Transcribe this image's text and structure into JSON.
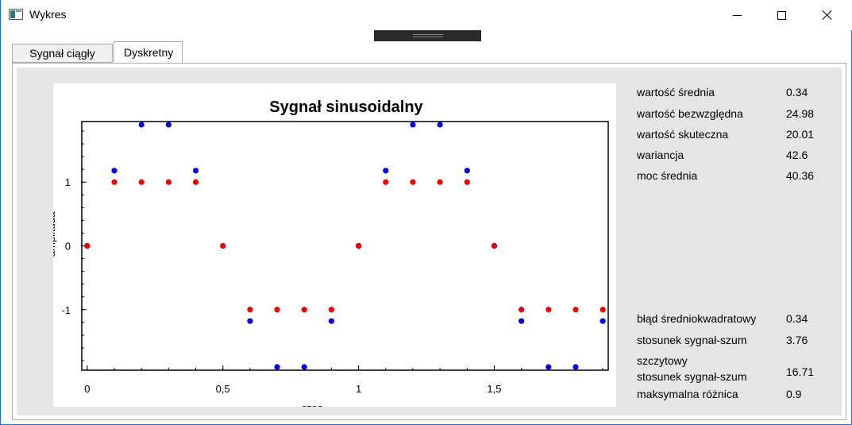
{
  "window": {
    "title": "Wykres",
    "controls": [
      "minimize",
      "maximize",
      "close"
    ]
  },
  "tabs": [
    {
      "label": "Sygnał ciągły",
      "active": false
    },
    {
      "label": "Dyskretny",
      "active": true
    }
  ],
  "chart_data": {
    "type": "scatter",
    "title": "Sygnał sinusoidalny",
    "xlabel": "czas",
    "ylabel": "amplituda",
    "xlim": [
      -0.02,
      1.92
    ],
    "ylim": [
      -1.95,
      1.95
    ],
    "xticks": [
      "0",
      "0,5",
      "1",
      "1,5"
    ],
    "xtick_values": [
      0,
      0.5,
      1,
      1.5
    ],
    "yticks": [
      "1",
      "0",
      "-1"
    ],
    "ytick_values": [
      1,
      0,
      -1
    ],
    "series": [
      {
        "color": "#0000ee",
        "x": [
          0,
          0.1,
          0.2,
          0.3,
          0.4,
          0.5,
          0.6,
          0.7,
          0.8,
          0.9,
          1.0,
          1.1,
          1.2,
          1.3,
          1.4,
          1.5,
          1.6,
          1.7,
          1.8,
          1.9
        ],
        "y": [
          0,
          1.18,
          1.9,
          1.9,
          1.18,
          0,
          -1.18,
          -1.9,
          -1.9,
          -1.18,
          0,
          1.18,
          1.9,
          1.9,
          1.18,
          0,
          -1.18,
          -1.9,
          -1.9,
          -1.18
        ]
      },
      {
        "color": "#ee0000",
        "x": [
          0,
          0.1,
          0.2,
          0.3,
          0.4,
          0.5,
          0.6,
          0.7,
          0.8,
          0.9,
          1.0,
          1.1,
          1.2,
          1.3,
          1.4,
          1.5,
          1.6,
          1.7,
          1.8,
          1.9
        ],
        "y": [
          0,
          1,
          1,
          1,
          1,
          0,
          -1,
          -1,
          -1,
          -1,
          0,
          1,
          1,
          1,
          1,
          0,
          -1,
          -1,
          -1,
          -1
        ]
      }
    ]
  },
  "stats_top": [
    {
      "label": "wartość średnia",
      "value": "0.34"
    },
    {
      "label": "wartość bezwzględna",
      "value": "24.98"
    },
    {
      "label": "wartość skuteczna",
      "value": "20.01"
    },
    {
      "label": "wariancja",
      "value": "42.6"
    },
    {
      "label": "moc średnia",
      "value": "40.36"
    }
  ],
  "stats_bottom": [
    {
      "label": "błąd średniokwadratowy",
      "value": "0.34"
    },
    {
      "label": "stosunek sygnał-szum",
      "value": "3.76"
    },
    {
      "label_line1": "szczytowy",
      "label_line2": "stosunek sygnał-szum",
      "value": "16.71"
    },
    {
      "label": "maksymalna różnica",
      "value": "0.9"
    }
  ]
}
